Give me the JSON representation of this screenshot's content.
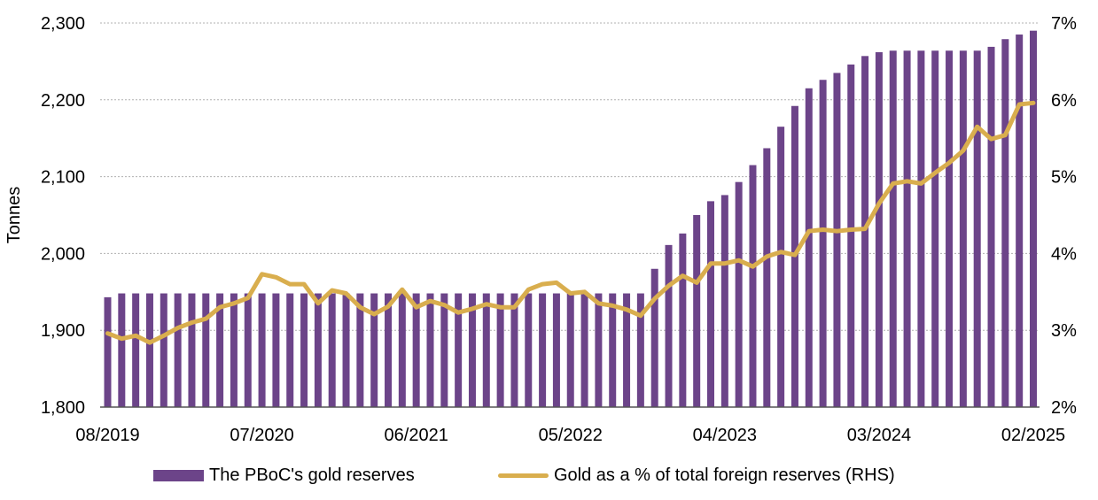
{
  "chart_data": {
    "type": "bar",
    "combo": "bar+line",
    "title": "",
    "xlabel": "",
    "ylabel": "Tonnes",
    "ylabel_right": "",
    "ylim": [
      1800,
      2300
    ],
    "ylim_right": [
      2,
      7
    ],
    "yticks": [
      1800,
      1900,
      2000,
      2100,
      2200,
      2300
    ],
    "ytick_labels": [
      "1,800",
      "1,900",
      "2,000",
      "2,100",
      "2,200",
      "2,300"
    ],
    "yticks_right": [
      2,
      3,
      4,
      5,
      6,
      7
    ],
    "ytick_labels_right": [
      "2%",
      "3%",
      "4%",
      "5%",
      "6%",
      "7%"
    ],
    "xtick_labels": [
      "08/2019",
      "07/2020",
      "06/2021",
      "05/2022",
      "04/2023",
      "03/2024",
      "02/2025"
    ],
    "xtick_every": 11,
    "grid": "horizontal dotted",
    "legend_position": "bottom",
    "colors": {
      "bars": "#6C4489",
      "line": "#D9AE4E",
      "grid": "#B0B0B0",
      "axis": "#555555"
    },
    "categories": [
      "08/2019",
      "09/2019",
      "10/2019",
      "11/2019",
      "12/2019",
      "01/2020",
      "02/2020",
      "03/2020",
      "04/2020",
      "05/2020",
      "06/2020",
      "07/2020",
      "08/2020",
      "09/2020",
      "10/2020",
      "11/2020",
      "12/2020",
      "01/2021",
      "02/2021",
      "03/2021",
      "04/2021",
      "05/2021",
      "06/2021",
      "07/2021",
      "08/2021",
      "09/2021",
      "10/2021",
      "11/2021",
      "12/2021",
      "01/2022",
      "02/2022",
      "03/2022",
      "04/2022",
      "05/2022",
      "06/2022",
      "07/2022",
      "08/2022",
      "09/2022",
      "10/2022",
      "11/2022",
      "12/2022",
      "01/2023",
      "02/2023",
      "03/2023",
      "04/2023",
      "05/2023",
      "06/2023",
      "07/2023",
      "08/2023",
      "09/2023",
      "10/2023",
      "11/2023",
      "12/2023",
      "01/2024",
      "02/2024",
      "03/2024",
      "04/2024",
      "05/2024",
      "06/2024",
      "07/2024",
      "08/2024",
      "09/2024",
      "10/2024",
      "11/2024",
      "12/2024",
      "01/2025",
      "02/2025"
    ],
    "series": [
      {
        "name": "The PBoC's gold reserves",
        "type": "bar",
        "axis": "left",
        "values": [
          1943,
          1948,
          1948,
          1948,
          1948,
          1948,
          1948,
          1948,
          1948,
          1948,
          1948,
          1948,
          1948,
          1948,
          1948,
          1948,
          1948,
          1948,
          1948,
          1948,
          1948,
          1948,
          1948,
          1948,
          1948,
          1948,
          1948,
          1948,
          1948,
          1948,
          1948,
          1948,
          1948,
          1948,
          1948,
          1948,
          1948,
          1948,
          1948,
          1980,
          2011,
          2026,
          2050,
          2068,
          2076,
          2093,
          2115,
          2137,
          2165,
          2192,
          2215,
          2226,
          2235,
          2246,
          2257,
          2262,
          2264,
          2264,
          2264,
          2264,
          2264,
          2264,
          2264,
          2269,
          2279,
          2285,
          2290
        ]
      },
      {
        "name": "Gold as a % of total foreign reserves (RHS)",
        "type": "line",
        "axis": "right",
        "values": [
          2.96,
          2.89,
          2.93,
          2.84,
          2.93,
          3.03,
          3.1,
          3.15,
          3.3,
          3.35,
          3.42,
          3.73,
          3.69,
          3.6,
          3.6,
          3.35,
          3.52,
          3.48,
          3.3,
          3.21,
          3.31,
          3.53,
          3.3,
          3.38,
          3.33,
          3.23,
          3.28,
          3.34,
          3.3,
          3.3,
          3.53,
          3.6,
          3.62,
          3.48,
          3.5,
          3.35,
          3.32,
          3.27,
          3.19,
          3.41,
          3.58,
          3.71,
          3.62,
          3.87,
          3.87,
          3.91,
          3.83,
          3.96,
          4.02,
          3.98,
          4.29,
          4.31,
          4.29,
          4.31,
          4.32,
          4.65,
          4.91,
          4.94,
          4.91,
          5.05,
          5.18,
          5.34,
          5.65,
          5.49,
          5.54,
          5.94,
          5.96
        ]
      }
    ]
  },
  "legend": {
    "bars_label": "The PBoC's gold reserves",
    "line_label": "Gold as a % of total foreign reserves (RHS)"
  }
}
